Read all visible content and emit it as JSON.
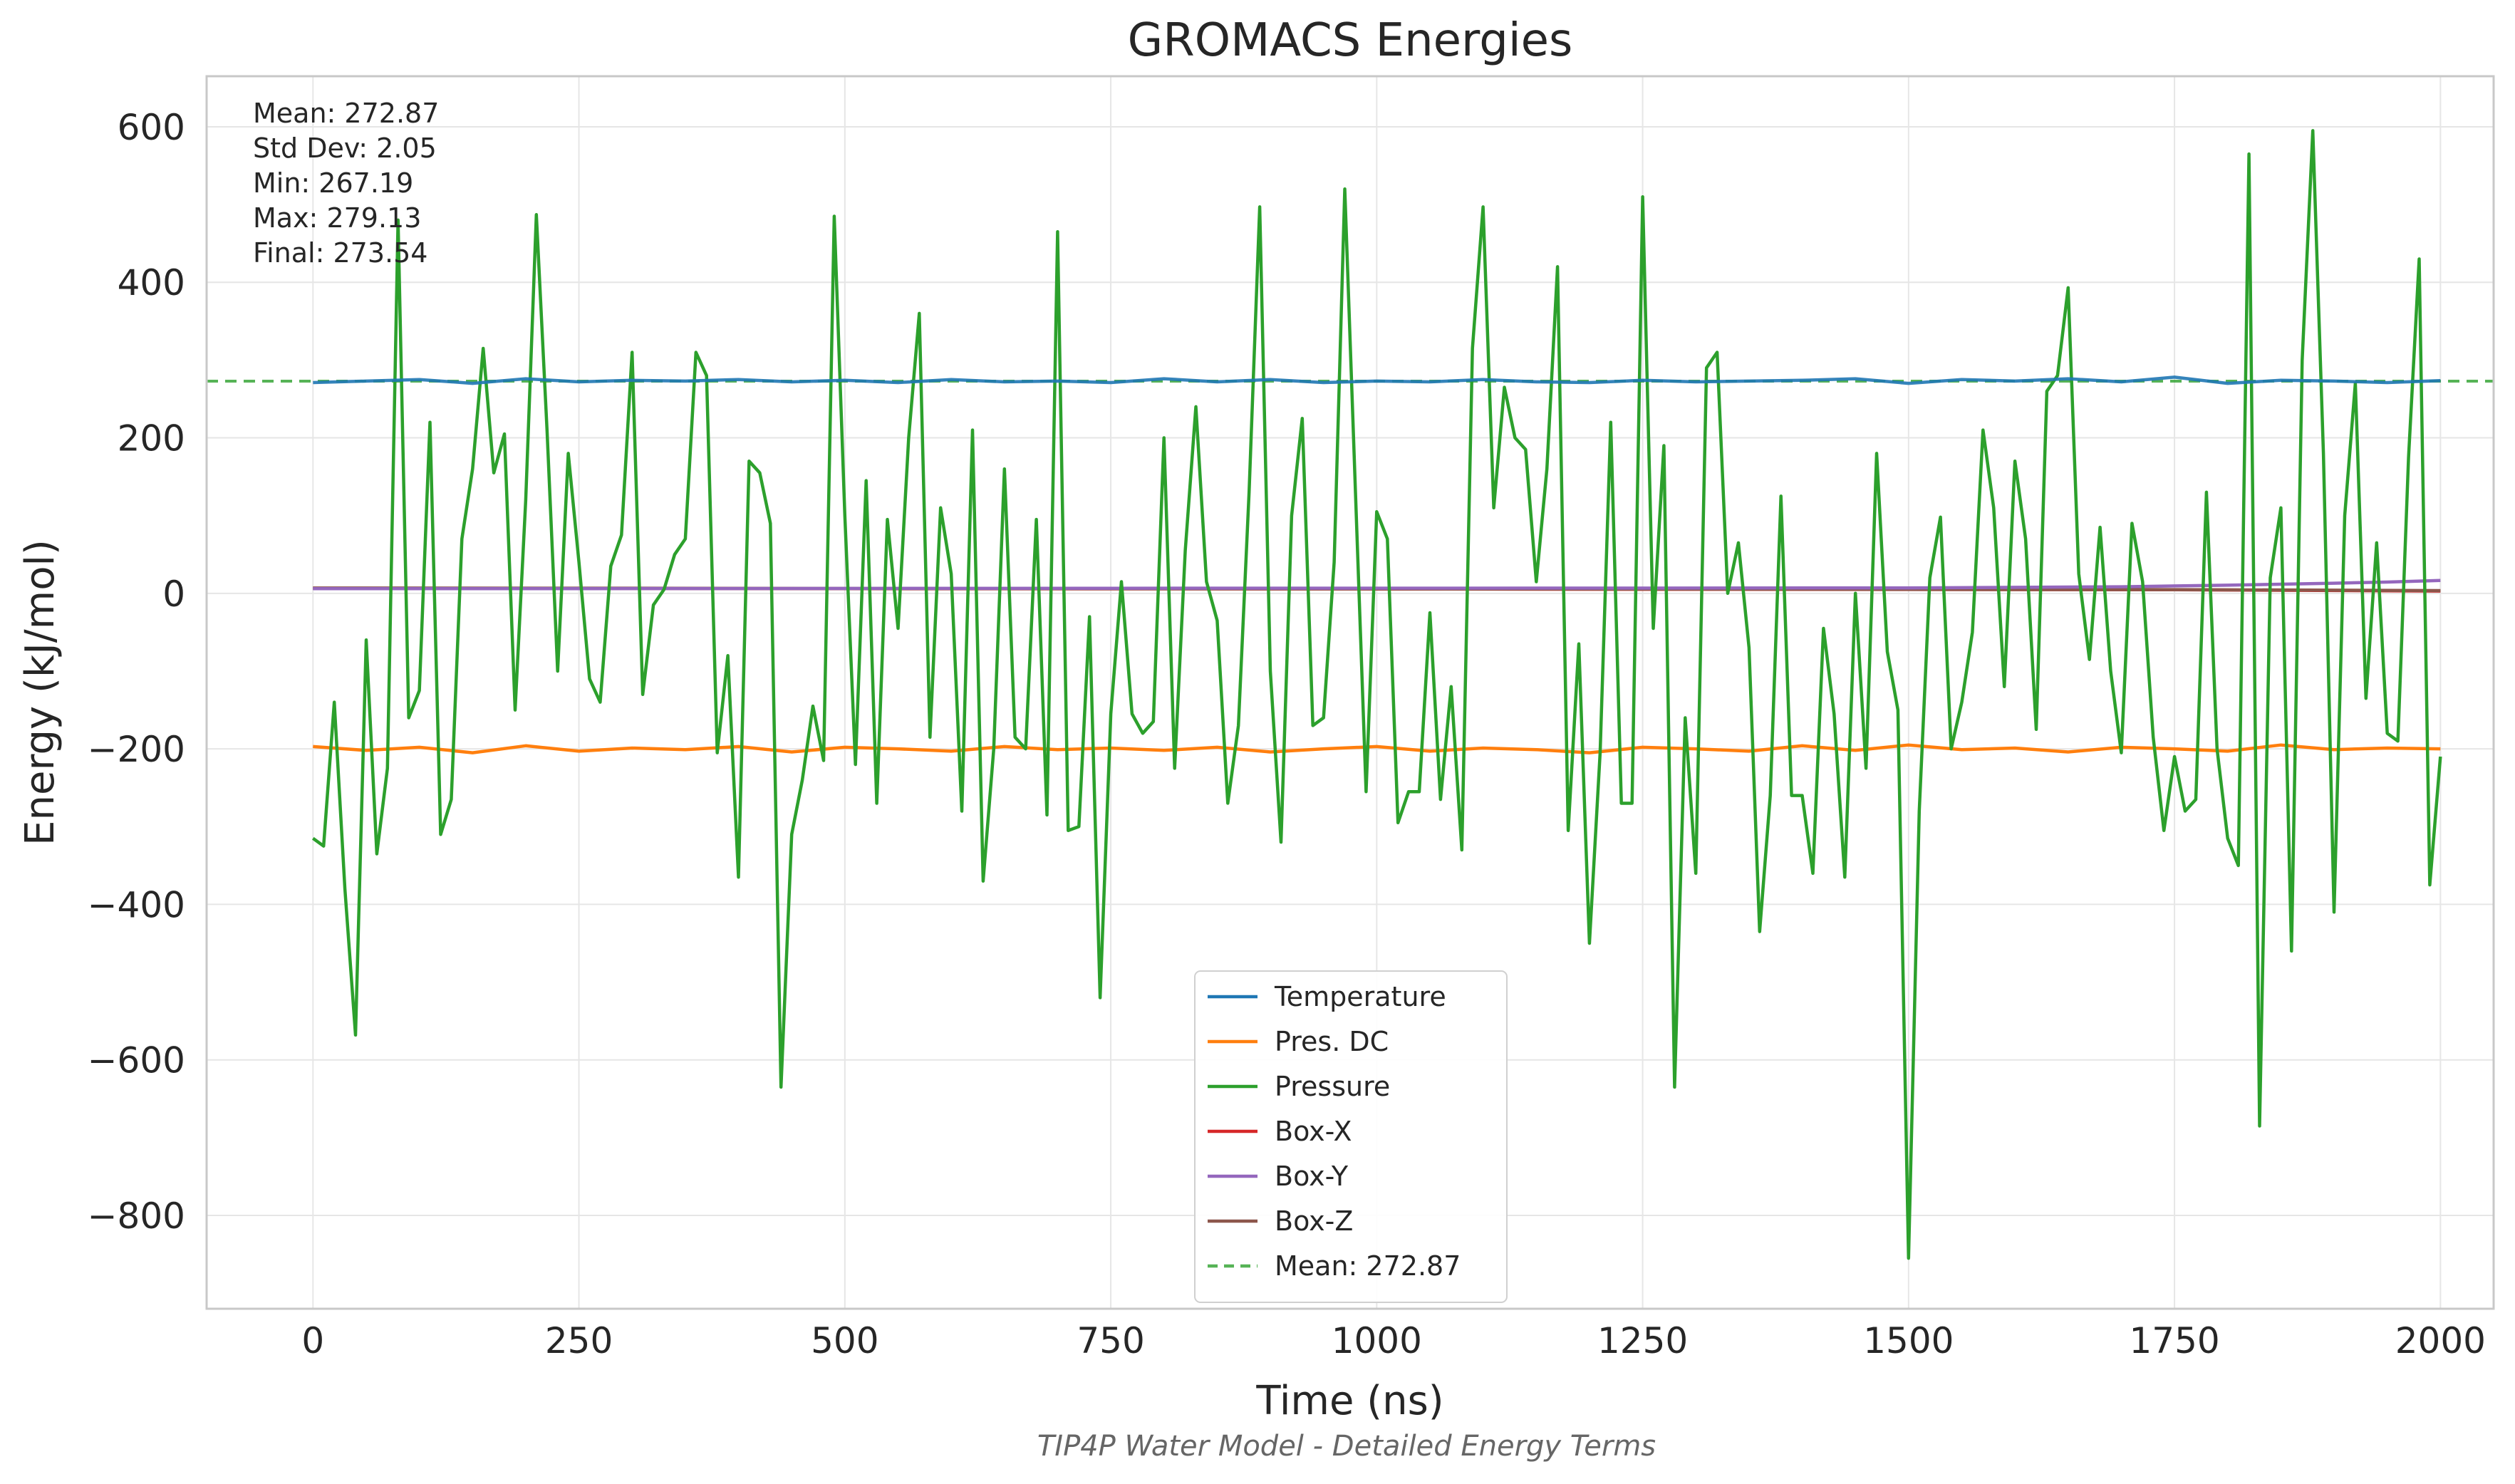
{
  "chart_data": {
    "type": "line",
    "title": "GROMACS Energies",
    "subtitle": "TIP4P Water Model - Detailed Energy Terms",
    "xlabel": "Time (ns)",
    "ylabel": "Energy (kJ/mol)",
    "xlim": [
      -100,
      2050
    ],
    "ylim": [
      -920,
      665
    ],
    "x_ticks": [
      0,
      250,
      500,
      750,
      1000,
      1250,
      1500,
      1750,
      2000
    ],
    "x_tick_labels": [
      "0",
      "250",
      "500",
      "750",
      "1000",
      "1250",
      "1500",
      "1750",
      "2000"
    ],
    "y_ticks": [
      600,
      400,
      200,
      0,
      -200,
      -400,
      -600,
      -800
    ],
    "y_tick_labels": [
      "600",
      "400",
      "200",
      "0",
      "−200",
      "−400",
      "−600",
      "−800"
    ],
    "grid": true,
    "legend_position": "lower-center",
    "stats": [
      "Mean: 272.87",
      "Std Dev: 2.05",
      "Min: 267.19",
      "Max: 279.13",
      "Final: 273.54"
    ],
    "series": [
      {
        "name": "Temperature",
        "color": "#1f77b4",
        "x": [
          0,
          50,
          100,
          150,
          200,
          250,
          300,
          350,
          400,
          450,
          500,
          550,
          600,
          650,
          700,
          750,
          800,
          850,
          900,
          950,
          1000,
          1050,
          1100,
          1150,
          1200,
          1250,
          1300,
          1350,
          1400,
          1450,
          1500,
          1550,
          1600,
          1650,
          1700,
          1750,
          1800,
          1850,
          1900,
          1950,
          2000
        ],
        "y": [
          271,
          273,
          275,
          270,
          276,
          272,
          274,
          273,
          275,
          272,
          274,
          271,
          275,
          272,
          273,
          271,
          276,
          272,
          275,
          271,
          273,
          272,
          275,
          272,
          271,
          274,
          272,
          273,
          274,
          276,
          270,
          275,
          273,
          276,
          272,
          278,
          270,
          274,
          273,
          271,
          273.5
        ]
      },
      {
        "name": "Pres. DC",
        "color": "#ff7f0e",
        "x": [
          0,
          50,
          100,
          150,
          200,
          250,
          300,
          350,
          400,
          450,
          500,
          550,
          600,
          650,
          700,
          750,
          800,
          850,
          900,
          950,
          1000,
          1050,
          1100,
          1150,
          1200,
          1250,
          1300,
          1350,
          1400,
          1450,
          1500,
          1550,
          1600,
          1650,
          1700,
          1750,
          1800,
          1850,
          1900,
          1950,
          2000
        ],
        "y": [
          -197,
          -202,
          -198,
          -205,
          -196,
          -203,
          -199,
          -201,
          -197,
          -204,
          -198,
          -200,
          -203,
          -197,
          -201,
          -199,
          -202,
          -198,
          -204,
          -200,
          -197,
          -203,
          -199,
          -201,
          -205,
          -198,
          -200,
          -203,
          -196,
          -202,
          -195,
          -201,
          -199,
          -204,
          -198,
          -200,
          -203,
          -195,
          -201,
          -199,
          -200
        ]
      },
      {
        "name": "Pressure",
        "color": "#2ca02c",
        "x": [
          0,
          10,
          20,
          30,
          40,
          50,
          60,
          70,
          80,
          90,
          100,
          110,
          120,
          130,
          140,
          150,
          160,
          170,
          180,
          190,
          200,
          210,
          220,
          230,
          240,
          250,
          260,
          270,
          280,
          290,
          300,
          310,
          320,
          330,
          340,
          350,
          360,
          370,
          380,
          390,
          400,
          410,
          420,
          430,
          440,
          450,
          460,
          470,
          480,
          490,
          500,
          510,
          520,
          530,
          540,
          550,
          560,
          570,
          580,
          590,
          600,
          610,
          620,
          630,
          640,
          650,
          660,
          670,
          680,
          690,
          700,
          710,
          720,
          730,
          740,
          750,
          760,
          770,
          780,
          790,
          800,
          810,
          820,
          830,
          840,
          850,
          860,
          870,
          880,
          890,
          900,
          910,
          920,
          930,
          940,
          950,
          960,
          970,
          980,
          990,
          1000,
          1010,
          1020,
          1030,
          1040,
          1050,
          1060,
          1070,
          1080,
          1090,
          1100,
          1110,
          1120,
          1130,
          1140,
          1150,
          1160,
          1170,
          1180,
          1190,
          1200,
          1210,
          1220,
          1230,
          1240,
          1250,
          1260,
          1270,
          1280,
          1290,
          1300,
          1310,
          1320,
          1330,
          1340,
          1350,
          1360,
          1370,
          1380,
          1390,
          1400,
          1410,
          1420,
          1430,
          1440,
          1450,
          1460,
          1470,
          1480,
          1490,
          1500,
          1510,
          1520,
          1530,
          1540,
          1550,
          1560,
          1570,
          1580,
          1590,
          1600,
          1610,
          1620,
          1630,
          1640,
          1650,
          1660,
          1670,
          1680,
          1690,
          1700,
          1710,
          1720,
          1730,
          1740,
          1750,
          1760,
          1770,
          1780,
          1790,
          1800,
          1810,
          1820,
          1830,
          1840,
          1850,
          1860,
          1870,
          1880,
          1890,
          1900,
          1910,
          1920,
          1930,
          1940,
          1950,
          1960,
          1970,
          1980,
          1990,
          2000
        ],
        "y": [
          -315,
          -325,
          -140,
          -380,
          -568,
          -60,
          -335,
          -225,
          480,
          -160,
          -125,
          220,
          -310,
          -265,
          70,
          160,
          315,
          155,
          205,
          -150,
          120,
          487,
          210,
          -100,
          180,
          40,
          -110,
          -140,
          35,
          75,
          310,
          -130,
          -15,
          5,
          50,
          70,
          310,
          280,
          -205,
          -80,
          -365,
          170,
          155,
          90,
          -635,
          -310,
          -240,
          -145,
          -215,
          485,
          100,
          -220,
          145,
          -270,
          95,
          -45,
          200,
          360,
          -185,
          110,
          25,
          -280,
          210,
          -370,
          -200,
          160,
          -185,
          -200,
          95,
          -285,
          465,
          -305,
          -300,
          -30,
          -520,
          -155,
          15,
          -155,
          -180,
          -165,
          200,
          -225,
          55,
          240,
          15,
          -35,
          -270,
          -170,
          130,
          497,
          -100,
          -320,
          100,
          225,
          -170,
          -160,
          40,
          520,
          130,
          -255,
          105,
          70,
          -295,
          -255,
          -255,
          -25,
          -265,
          -120,
          -330,
          315,
          497,
          110,
          265,
          200,
          185,
          15,
          160,
          420,
          -305,
          -65,
          -450,
          -205,
          220,
          -270,
          -270,
          510,
          -45,
          190,
          -635,
          -160,
          -360,
          290,
          310,
          0,
          65,
          -70,
          -435,
          -260,
          125,
          -260,
          -260,
          -360,
          -45,
          -155,
          -365,
          0,
          -225,
          180,
          -75,
          -150,
          -855,
          -280,
          20,
          98,
          -200,
          -140,
          -50,
          210,
          110,
          -120,
          170,
          70,
          -175,
          260,
          280,
          393,
          25,
          -85,
          85,
          -100,
          -205,
          90,
          15,
          -185,
          -305,
          -210,
          -280,
          -265,
          130,
          -200,
          -315,
          -350,
          565,
          -685,
          20,
          110,
          -460,
          300,
          595,
          180,
          -410,
          100,
          270,
          -135,
          65,
          -180,
          -190,
          175,
          430,
          -375,
          -210
        ]
      },
      {
        "name": "Box-X",
        "color": "#d62728",
        "x": [
          0,
          250,
          500,
          750,
          1000,
          1250,
          1500,
          1750,
          2000
        ],
        "y": [
          6.5,
          6.3,
          6.0,
          5.8,
          5.6,
          5.3,
          5.0,
          4.6,
          3.0
        ]
      },
      {
        "name": "Box-Y",
        "color": "#9467bd",
        "x": [
          0,
          250,
          500,
          750,
          1000,
          1250,
          1500,
          1700,
          1800,
          1900,
          1950,
          2000
        ],
        "y": [
          6.0,
          6.1,
          6.3,
          6.5,
          6.6,
          6.7,
          7.0,
          8.5,
          10.5,
          13.0,
          14.5,
          16.5
        ]
      },
      {
        "name": "Box-Z",
        "color": "#8c564b",
        "x": [
          0,
          250,
          500,
          750,
          1000,
          1250,
          1500,
          1750,
          2000
        ],
        "y": [
          6.8,
          6.6,
          6.3,
          6.0,
          5.8,
          5.5,
          5.2,
          4.8,
          3.5
        ]
      },
      {
        "name": "Mean: 272.87",
        "color": "#2ca02c",
        "style": "dashed",
        "x": [
          -100,
          2050
        ],
        "y": [
          272.87,
          272.87
        ]
      }
    ]
  }
}
